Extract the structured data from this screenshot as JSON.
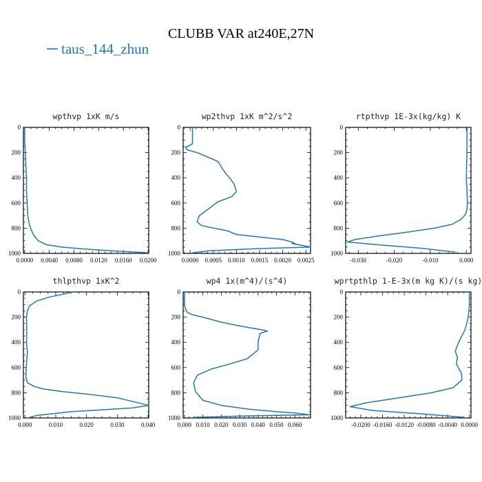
{
  "figure": {
    "title": "CLUBB VAR at240E,27N",
    "legend": {
      "label": "taus_144_zhun",
      "color": "#1f77b4"
    }
  },
  "chart_data": [
    {
      "type": "line",
      "title": "wpthvp  1xK m/s",
      "xlim": [
        -0.0002,
        0.0201
      ],
      "ylim": [
        1000,
        0
      ],
      "xticks": [
        0.0,
        0.004,
        0.008,
        0.012,
        0.016,
        0.02
      ],
      "xtick_labels": [
        "0.0000",
        "0.0040",
        "0.0080",
        "0.0120",
        "0.0160",
        "0.0200"
      ],
      "yticks": [
        0,
        200,
        400,
        600,
        800,
        1000
      ],
      "ytick_labels": [
        "0",
        "200",
        "400",
        "600",
        "800",
        "1000"
      ],
      "series": [
        {
          "color": "#1f77b4",
          "x": [
            0.0,
            0.0,
            0.0001,
            0.0002,
            0.0003,
            0.0003,
            0.0004,
            0.0005,
            0.0008,
            0.0014,
            0.0022,
            0.0035,
            0.006,
            0.011,
            0.016,
            0.0201
          ],
          "y": [
            0,
            100,
            200,
            300,
            400,
            500,
            600,
            700,
            780,
            850,
            900,
            930,
            950,
            970,
            985,
            995
          ]
        }
      ]
    },
    {
      "type": "line",
      "title": "wp2thvp  1xK m^2/s^2",
      "xlim": [
        -0.00015,
        0.0026
      ],
      "ylim": [
        1000,
        0
      ],
      "xticks": [
        0.0,
        0.0005,
        0.001,
        0.0015,
        0.002,
        0.0025
      ],
      "xtick_labels": [
        "0.0000",
        "0.0005",
        "0.0010",
        "0.0015",
        "0.0020",
        "0.0025"
      ],
      "yticks": [
        0,
        200,
        400,
        600,
        800,
        1000
      ],
      "ytick_labels": [
        "0",
        "200",
        "400",
        "600",
        "800",
        "1000"
      ],
      "series": [
        {
          "color": "#1f77b4",
          "x": [
            5e-05,
            5e-05,
            -0.0001,
            -5e-05,
            0.00015,
            0.0006,
            0.0007,
            0.0008,
            0.00085,
            0.00095,
            0.001,
            0.0009,
            0.0006,
            0.00035,
            0.0002,
            0.00015,
            0.00025,
            0.0008,
            0.001,
            0.0015,
            0.002,
            0.0022,
            0.0023,
            0.0022,
            0.0026,
            0.0016,
            0.0004,
            5e-05
          ],
          "y": [
            0,
            130,
            160,
            180,
            200,
            270,
            330,
            380,
            400,
            450,
            510,
            550,
            590,
            660,
            700,
            750,
            780,
            820,
            850,
            870,
            890,
            910,
            930,
            920,
            950,
            960,
            980,
            995
          ]
        }
      ]
    },
    {
      "type": "line",
      "title": "rtpthvp  1E-3x(kg/kg) K",
      "xlim": [
        -0.0335,
        0.0013
      ],
      "ylim": [
        1000,
        0
      ],
      "xticks": [
        -0.03,
        -0.02,
        -0.01,
        0.0
      ],
      "xtick_labels": [
        "-0.030",
        "-0.020",
        "-0.010",
        "0.000"
      ],
      "yticks": [
        0,
        200,
        400,
        600,
        800,
        1000
      ],
      "ytick_labels": [
        "0",
        "200",
        "400",
        "600",
        "800",
        "1000"
      ],
      "series": [
        {
          "color": "#1f77b4",
          "x": [
            0.0002,
            0.0002,
            0.0001,
            0.0,
            0.0002,
            0.0003,
            0.0002,
            -0.0002,
            -0.0015,
            -0.004,
            -0.009,
            -0.016,
            -0.024,
            -0.031,
            -0.033,
            -0.025,
            -0.012,
            -0.003
          ],
          "y": [
            0,
            150,
            300,
            400,
            500,
            600,
            650,
            690,
            730,
            770,
            800,
            830,
            860,
            890,
            910,
            930,
            960,
            990
          ]
        }
      ]
    },
    {
      "type": "line",
      "title": "thlpthvp  1xK^2",
      "xlim": [
        -0.0005,
        0.0402
      ],
      "ylim": [
        1000,
        0
      ],
      "xticks": [
        0.0,
        0.01,
        0.02,
        0.03,
        0.04
      ],
      "xtick_labels": [
        "0.000",
        "0.010",
        "0.020",
        "0.030",
        "0.040"
      ],
      "yticks": [
        0,
        200,
        400,
        600,
        800,
        1000
      ],
      "ytick_labels": [
        "0",
        "200",
        "400",
        "600",
        "800",
        "1000"
      ],
      "series": [
        {
          "color": "#1f77b4",
          "x": [
            0.0155,
            0.012,
            0.008,
            0.004,
            0.0015,
            0.0008,
            0.0005,
            0.0006,
            0.0005,
            0.0008,
            0.0004,
            0.0003,
            0.0008,
            0.003,
            0.006,
            0.012,
            0.02,
            0.03,
            0.0402,
            0.035,
            0.015,
            0.004,
            0.0015
          ],
          "y": [
            0,
            20,
            40,
            70,
            110,
            150,
            200,
            300,
            400,
            480,
            600,
            680,
            720,
            750,
            770,
            790,
            810,
            840,
            900,
            920,
            950,
            980,
            995
          ]
        }
      ]
    },
    {
      "type": "line",
      "title": "wp4  1x(m^4)/(s^4)",
      "xlim": [
        -0.0007,
        0.0685
      ],
      "ylim": [
        1000,
        0
      ],
      "xticks": [
        0.0,
        0.01,
        0.02,
        0.03,
        0.04,
        0.05,
        0.06
      ],
      "xtick_labels": [
        "0.000",
        "0.010",
        "0.020",
        "0.030",
        "0.040",
        "0.050",
        "0.060"
      ],
      "yticks": [
        0,
        200,
        400,
        600,
        800,
        1000
      ],
      "ytick_labels": [
        "0",
        "200",
        "400",
        "600",
        "800",
        "1000"
      ],
      "series": [
        {
          "color": "#1f77b4",
          "x": [
            0.0,
            0.0,
            0.0005,
            0.0015,
            0.004,
            0.01,
            0.02,
            0.03,
            0.038,
            0.042,
            0.045,
            0.041,
            0.04,
            0.04,
            0.034,
            0.025,
            0.015,
            0.007,
            0.005,
            0.006,
            0.01,
            0.02,
            0.035,
            0.05,
            0.06,
            0.068,
            0.03,
            0.005
          ],
          "y": [
            0,
            100,
            130,
            160,
            180,
            200,
            240,
            270,
            290,
            300,
            310,
            330,
            400,
            460,
            530,
            570,
            610,
            660,
            720,
            790,
            860,
            900,
            930,
            950,
            960,
            975,
            985,
            995
          ]
        }
      ]
    },
    {
      "type": "line",
      "title": "wprtpthlp  1-E-3x(m kg K)/(s kg)",
      "xlim": [
        -0.0228,
        0.0003
      ],
      "ylim": [
        1000,
        0
      ],
      "xticks": [
        -0.02,
        -0.016,
        -0.012,
        -0.008,
        -0.004,
        0.0
      ],
      "xtick_labels": [
        "-0.0200",
        "-0.0160",
        "-0.0120",
        "-0.0080",
        "-0.0040",
        "0.0000"
      ],
      "yticks": [
        0,
        200,
        400,
        600,
        800,
        1000
      ],
      "ytick_labels": [
        "0",
        "200",
        "400",
        "600",
        "800",
        "1000"
      ],
      "series": [
        {
          "color": "#1f77b4",
          "x": [
            0.0,
            0.0,
            -0.0002,
            -0.0008,
            -0.002,
            -0.0026,
            -0.0022,
            -0.0024,
            -0.0018,
            -0.0014,
            -0.0014,
            -0.003,
            -0.007,
            -0.013,
            -0.019,
            -0.022,
            -0.018,
            -0.008,
            -0.001
          ],
          "y": [
            0,
            100,
            200,
            300,
            400,
            470,
            520,
            570,
            620,
            650,
            700,
            760,
            800,
            840,
            880,
            910,
            940,
            970,
            995
          ]
        }
      ]
    }
  ]
}
